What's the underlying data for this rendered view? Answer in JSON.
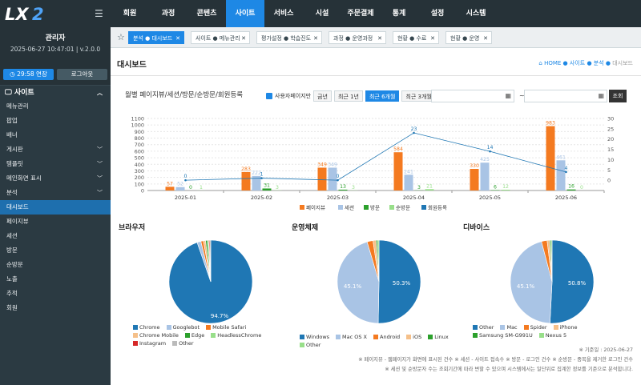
{
  "brand": {
    "logo": "LX 2"
  },
  "topmenu": [
    "회원",
    "과정",
    "콘텐츠",
    "사이트",
    "서비스",
    "시설",
    "주문결제",
    "통계",
    "설정",
    "시스템"
  ],
  "user": {
    "role": "관리자",
    "info": "2025-06-27 10:47:01 | v.2.0.0",
    "extend": "29:58 연장",
    "logout": "로그아웃"
  },
  "sidebar": {
    "title": "사이트",
    "items": [
      {
        "label": "메뉴관리",
        "chevron": false
      },
      {
        "label": "팝업",
        "chevron": false
      },
      {
        "label": "배너",
        "chevron": false
      },
      {
        "label": "게시판",
        "chevron": true
      },
      {
        "label": "템플릿",
        "chevron": true
      },
      {
        "label": "메인화면 표시",
        "chevron": true
      },
      {
        "label": "분석",
        "chevron": true
      },
      {
        "label": "대시보드",
        "chevron": false,
        "active": true
      },
      {
        "label": "페이지뷰",
        "chevron": false
      },
      {
        "label": "세션",
        "chevron": false
      },
      {
        "label": "방문",
        "chevron": false
      },
      {
        "label": "순방문",
        "chevron": false
      },
      {
        "label": "노출",
        "chevron": false
      },
      {
        "label": "추적",
        "chevron": false
      },
      {
        "label": "회원",
        "chevron": false
      }
    ]
  },
  "tabs": [
    {
      "a": "분석",
      "b": "대시보드",
      "active": true
    },
    {
      "a": "사이트",
      "b": "메뉴관리"
    },
    {
      "a": "평가설정",
      "b": "학습진도"
    },
    {
      "a": "과정",
      "b": "운영과정"
    },
    {
      "a": "현황",
      "b": "수료"
    },
    {
      "a": "현황",
      "b": "운영"
    }
  ],
  "page": {
    "title": "대시보드",
    "breadcrumb": [
      "HOME",
      "사이트",
      "분석",
      "대시보드"
    ]
  },
  "filter": {
    "checkbox": "사용자페이지만",
    "periods": [
      "금년",
      "최근 1년",
      "최근 6개월",
      "최근 3개월"
    ],
    "active": "최근 6개월",
    "search": "조회",
    "tilde": "~"
  },
  "chart_data": [
    {
      "type": "bar",
      "title": "월별 페이지뷰/세션/방문/순방문/회원등록",
      "categories": [
        "2025-01",
        "2025-02",
        "2025-03",
        "2025-04",
        "2025-05",
        "2025-06"
      ],
      "ylim": [
        0,
        1100
      ],
      "y2lim": [
        -5,
        30
      ],
      "yticks": [
        0,
        100,
        200,
        300,
        400,
        500,
        600,
        700,
        800,
        900,
        1000,
        1100
      ],
      "y2ticks": [
        0,
        5,
        10,
        15,
        20,
        25,
        30
      ],
      "series": [
        {
          "name": "페이지뷰",
          "color": "#f47a20",
          "values": [
            57,
            283,
            349,
            584,
            330,
            983
          ],
          "labels": [
            "57",
            "283",
            "349",
            "584",
            "330",
            "983"
          ]
        },
        {
          "name": "세션",
          "color": "#a9c4e5",
          "values": [
            52,
            222,
            349,
            241,
            425,
            461
          ],
          "labels": [
            "52",
            "222",
            "349",
            "241",
            "425",
            "461"
          ]
        },
        {
          "name": "방문",
          "color": "#2ca02c",
          "values": [
            0,
            31,
            13,
            3,
            6,
            16
          ],
          "labels": [
            "0",
            "31",
            "13",
            "3",
            "6",
            "16"
          ]
        },
        {
          "name": "순방문",
          "color": "#98df8a",
          "values": [
            1,
            3,
            3,
            21,
            12,
            0
          ],
          "labels": [
            "1",
            "3",
            "3",
            "21",
            "12",
            "0"
          ]
        },
        {
          "name": "회원등록",
          "color": "#1f77b4",
          "type": "line",
          "axis": "right",
          "values": [
            0,
            1,
            0,
            23,
            14,
            4
          ],
          "labels": [
            "0",
            "1",
            "0",
            "23",
            "14",
            "4"
          ]
        }
      ]
    },
    {
      "type": "pie",
      "title": "브라우저",
      "labels": [
        "Chrome",
        "Googlebot",
        "Mobile Safari",
        "Chrome Mobile",
        "Edge",
        "HeadlessChrome",
        "Instagram",
        "Other"
      ],
      "values": [
        94.7,
        1.5,
        1.0,
        0.8,
        0.7,
        0.5,
        0.4,
        0.4
      ],
      "colors": [
        "#1f77b4",
        "#a9c4e5",
        "#f47a20",
        "#f5c08a",
        "#2ca02c",
        "#98df8a",
        "#d62728",
        "#bbbbbb"
      ],
      "shown": [
        "94.7%"
      ]
    },
    {
      "type": "pie",
      "title": "운영체제",
      "labels": [
        "Windows",
        "Mac OS X",
        "Android",
        "iOS",
        "Linux",
        "Other"
      ],
      "values": [
        50.3,
        45.1,
        2.3,
        1.2,
        0.6,
        0.5
      ],
      "colors": [
        "#1f77b4",
        "#a9c4e5",
        "#f47a20",
        "#f5c08a",
        "#2ca02c",
        "#98df8a"
      ],
      "shown": [
        "50.3%",
        "45.1%"
      ]
    },
    {
      "type": "pie",
      "title": "디바이스",
      "labels": [
        "Other",
        "Mac",
        "Spider",
        "iPhone",
        "Samsung SM-G991U",
        "Nexus 5"
      ],
      "values": [
        50.8,
        45.1,
        2.2,
        1.0,
        0.5,
        0.4
      ],
      "colors": [
        "#1f77b4",
        "#a9c4e5",
        "#f47a20",
        "#f5c08a",
        "#2ca02c",
        "#98df8a"
      ],
      "shown": [
        "50.8%",
        "45.1%"
      ]
    }
  ],
  "notes": [
    "※ 기준일 : 2025-06-27",
    "※ 페이지뷰 - 웹페이지가 화면에 표시된 건수  ※ 세션 - 사이트 접속수  ※ 방문 - 로그인 건수  ※ 순방문 - 중복을 제거한 로그인 건수",
    "※ 세션 및 순방문자 수는 조회기간에 따라 변할 수 있으며 시스템에서는 일단위로 집계한 정보를 기준으로 분석합니다."
  ]
}
